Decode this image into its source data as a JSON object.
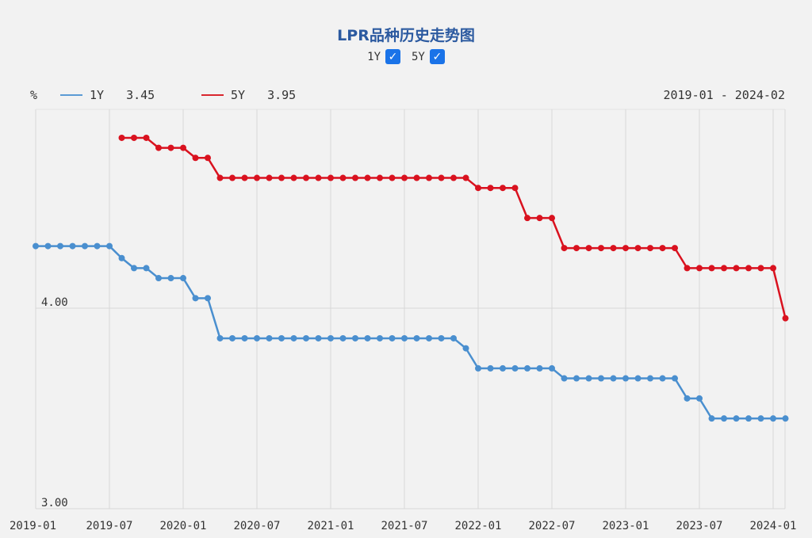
{
  "title": "LPR品种历史走势图",
  "toggles": [
    {
      "label": "1Y",
      "checked": true,
      "check_mark": "✓"
    },
    {
      "label": "5Y",
      "checked": true,
      "check_mark": "✓"
    }
  ],
  "legend": {
    "unit": "%",
    "items": [
      {
        "name": "1Y",
        "value": "3.45",
        "color": "#5b9bd5"
      },
      {
        "name": "5Y",
        "value": "3.95",
        "color": "#d9262e"
      }
    ],
    "range": "2019-01 - 2024-02"
  },
  "colors": {
    "line_1y": "#4a8fcf",
    "line_5y": "#d9121f",
    "grid": "#d8d8d8",
    "background": "#f2f2f2"
  },
  "chart_data": {
    "type": "line",
    "x_dates": [
      "2019-01",
      "2019-02",
      "2019-03",
      "2019-04",
      "2019-05",
      "2019-06",
      "2019-07",
      "2019-08",
      "2019-09",
      "2019-10",
      "2019-11",
      "2019-12",
      "2020-01",
      "2020-02",
      "2020-03",
      "2020-04",
      "2020-05",
      "2020-06",
      "2020-07",
      "2020-08",
      "2020-09",
      "2020-10",
      "2020-11",
      "2020-12",
      "2021-01",
      "2021-02",
      "2021-03",
      "2021-04",
      "2021-05",
      "2021-06",
      "2021-07",
      "2021-08",
      "2021-09",
      "2021-10",
      "2021-11",
      "2021-12",
      "2022-01",
      "2022-02",
      "2022-03",
      "2022-04",
      "2022-05",
      "2022-06",
      "2022-07",
      "2022-08",
      "2022-09",
      "2022-10",
      "2022-11",
      "2022-12",
      "2023-01",
      "2023-02",
      "2023-03",
      "2023-04",
      "2023-05",
      "2023-06",
      "2023-07",
      "2023-08",
      "2023-09",
      "2023-10",
      "2023-11",
      "2023-12",
      "2024-01",
      "2024-02"
    ],
    "series": [
      {
        "name": "1Y",
        "values": [
          4.31,
          4.31,
          4.31,
          4.31,
          4.31,
          4.31,
          4.31,
          4.25,
          4.2,
          4.2,
          4.15,
          4.15,
          4.15,
          4.05,
          4.05,
          3.85,
          3.85,
          3.85,
          3.85,
          3.85,
          3.85,
          3.85,
          3.85,
          3.85,
          3.85,
          3.85,
          3.85,
          3.85,
          3.85,
          3.85,
          3.85,
          3.85,
          3.85,
          3.85,
          3.85,
          3.8,
          3.7,
          3.7,
          3.7,
          3.7,
          3.7,
          3.7,
          3.7,
          3.65,
          3.65,
          3.65,
          3.65,
          3.65,
          3.65,
          3.65,
          3.65,
          3.65,
          3.65,
          3.55,
          3.55,
          3.45,
          3.45,
          3.45,
          3.45,
          3.45,
          3.45,
          3.45
        ]
      },
      {
        "name": "5Y",
        "values": [
          null,
          null,
          null,
          null,
          null,
          null,
          null,
          4.85,
          4.85,
          4.85,
          4.8,
          4.8,
          4.8,
          4.75,
          4.75,
          4.65,
          4.65,
          4.65,
          4.65,
          4.65,
          4.65,
          4.65,
          4.65,
          4.65,
          4.65,
          4.65,
          4.65,
          4.65,
          4.65,
          4.65,
          4.65,
          4.65,
          4.65,
          4.65,
          4.65,
          4.65,
          4.6,
          4.6,
          4.6,
          4.6,
          4.45,
          4.45,
          4.45,
          4.3,
          4.3,
          4.3,
          4.3,
          4.3,
          4.3,
          4.3,
          4.3,
          4.3,
          4.3,
          4.2,
          4.2,
          4.2,
          4.2,
          4.2,
          4.2,
          4.2,
          4.2,
          3.95
        ]
      }
    ],
    "y_ticks": [
      "4.00",
      "3.00"
    ],
    "x_ticks": [
      "2019-01",
      "2019-07",
      "2020-01",
      "2020-07",
      "2021-01",
      "2021-07",
      "2022-01",
      "2022-07",
      "2023-01",
      "2023-07",
      "2024-01"
    ],
    "ylim": [
      3.0,
      5.0
    ],
    "grid": true
  }
}
